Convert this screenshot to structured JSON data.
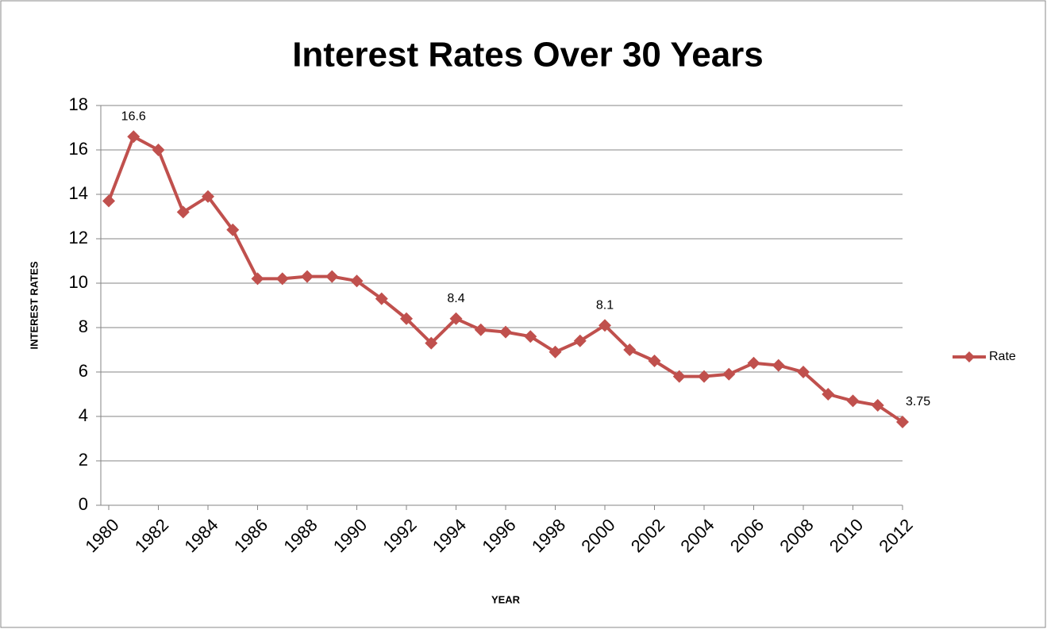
{
  "chart_data": {
    "type": "line",
    "title": "Interest Rates Over 30 Years",
    "x_label": "YEAR",
    "y_label": "INTEREST RATES",
    "x": [
      1980,
      1981,
      1982,
      1983,
      1984,
      1985,
      1986,
      1987,
      1988,
      1989,
      1990,
      1991,
      1992,
      1993,
      1994,
      1995,
      1996,
      1997,
      1998,
      1999,
      2000,
      2001,
      2002,
      2003,
      2004,
      2005,
      2006,
      2007,
      2008,
      2009,
      2010,
      2011,
      2012
    ],
    "series": [
      {
        "name": "Rate",
        "color": "#c0504d",
        "values": [
          13.7,
          16.6,
          16.0,
          13.2,
          13.9,
          12.4,
          10.2,
          10.2,
          10.3,
          10.3,
          10.1,
          9.3,
          8.4,
          7.3,
          8.4,
          7.9,
          7.8,
          7.6,
          6.9,
          7.4,
          8.1,
          7.0,
          6.5,
          5.8,
          5.8,
          5.9,
          6.4,
          6.3,
          6.0,
          5.0,
          4.7,
          4.5,
          3.75
        ],
        "value_labels": [
          null,
          "16.6",
          null,
          null,
          null,
          null,
          null,
          null,
          null,
          null,
          null,
          null,
          null,
          null,
          "8.4",
          null,
          null,
          null,
          null,
          null,
          "8.1",
          null,
          null,
          null,
          null,
          null,
          null,
          null,
          null,
          null,
          null,
          null,
          "3.75"
        ]
      }
    ],
    "xlim": [
      1980,
      2012
    ],
    "xticks": [
      1980,
      1982,
      1984,
      1986,
      1988,
      1990,
      1992,
      1994,
      1996,
      1998,
      2000,
      2002,
      2004,
      2006,
      2008,
      2010,
      2012
    ],
    "ylim": [
      0,
      18
    ],
    "yticks": [
      0,
      2,
      4,
      6,
      8,
      10,
      12,
      14,
      16,
      18
    ],
    "grid": true,
    "legend": "right"
  }
}
